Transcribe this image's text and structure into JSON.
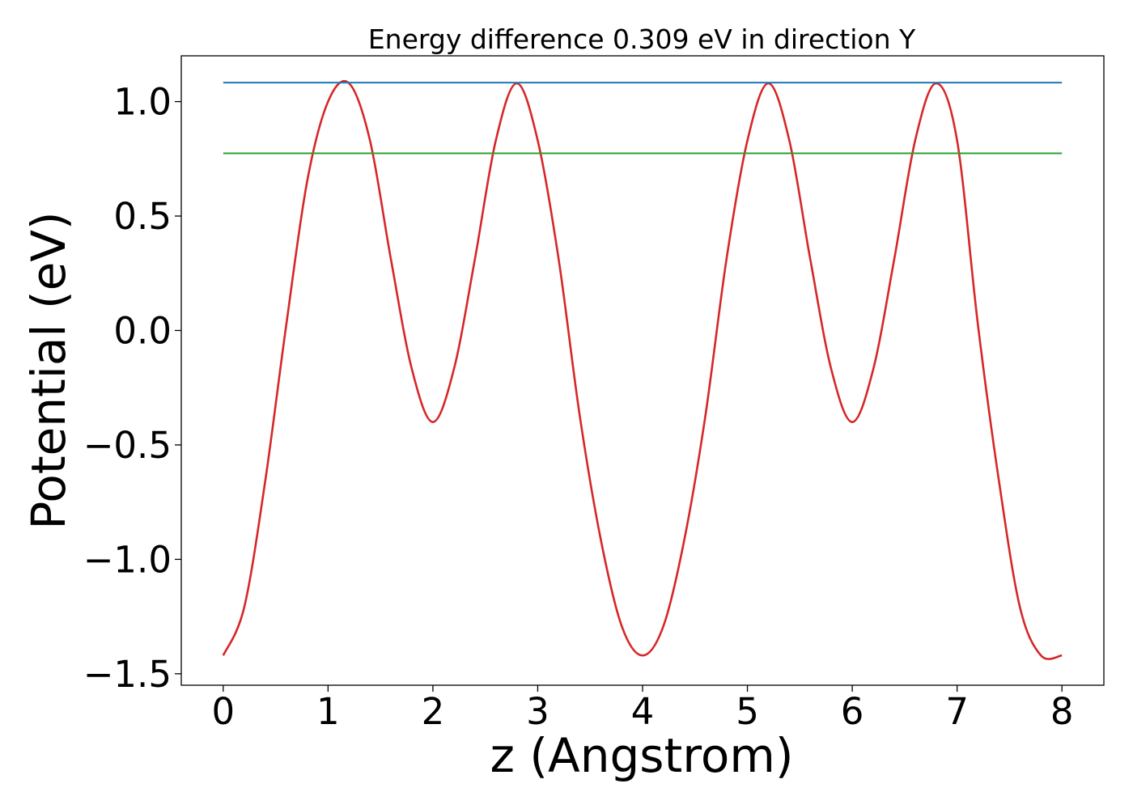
{
  "chart_data": {
    "type": "line",
    "title": "Energy difference 0.309 eV in direction Y",
    "xlabel": "z (Angstrom)",
    "ylabel": "Potential (eV)",
    "xlim": [
      -0.4,
      8.4
    ],
    "ylim": [
      -1.55,
      1.2
    ],
    "xticks": [
      0,
      1,
      2,
      3,
      4,
      5,
      6,
      7,
      8
    ],
    "xtick_labels": [
      "0",
      "1",
      "2",
      "3",
      "4",
      "5",
      "6",
      "7",
      "8"
    ],
    "yticks": [
      1.0,
      0.5,
      0.0,
      -0.5,
      -1.0,
      -1.5
    ],
    "ytick_labels": [
      "1.0",
      "0.5",
      "0.0",
      "−0.5",
      "−1.0",
      "−1.5"
    ],
    "grid": false,
    "series": [
      {
        "color": "#d62728",
        "x": [
          0,
          0.2,
          0.4,
          0.6,
          0.8,
          1.0,
          1.2,
          1.4,
          1.6,
          1.8,
          2.0,
          2.2,
          2.4,
          2.6,
          2.8,
          3.0,
          3.2,
          3.4,
          3.6,
          3.8,
          4.0,
          4.2,
          4.4,
          4.6,
          4.8,
          5.0,
          5.2,
          5.4,
          5.6,
          5.8,
          6.0,
          6.2,
          6.4,
          6.6,
          6.8,
          7.0,
          7.2,
          7.4,
          7.6,
          7.8,
          8.0
        ],
        "values": [
          -1.42,
          -1.21,
          -0.66,
          0.02,
          0.65,
          1.0,
          1.08,
          0.83,
          0.31,
          -0.17,
          -0.4,
          -0.17,
          0.31,
          0.83,
          1.08,
          0.83,
          0.31,
          -0.37,
          -0.91,
          -1.29,
          -1.42,
          -1.29,
          -0.91,
          -0.37,
          0.31,
          0.83,
          1.08,
          0.83,
          0.31,
          -0.17,
          -0.4,
          -0.17,
          0.31,
          0.83,
          1.08,
          0.83,
          0.02,
          -0.66,
          -1.21,
          -1.42,
          -1.42
        ]
      },
      {
        "color": "#1f77b4",
        "x": [
          0,
          8
        ],
        "values": [
          1.083,
          1.083
        ]
      },
      {
        "color": "#2ca02c",
        "x": [
          0,
          8
        ],
        "values": [
          0.774,
          0.774
        ]
      }
    ]
  }
}
